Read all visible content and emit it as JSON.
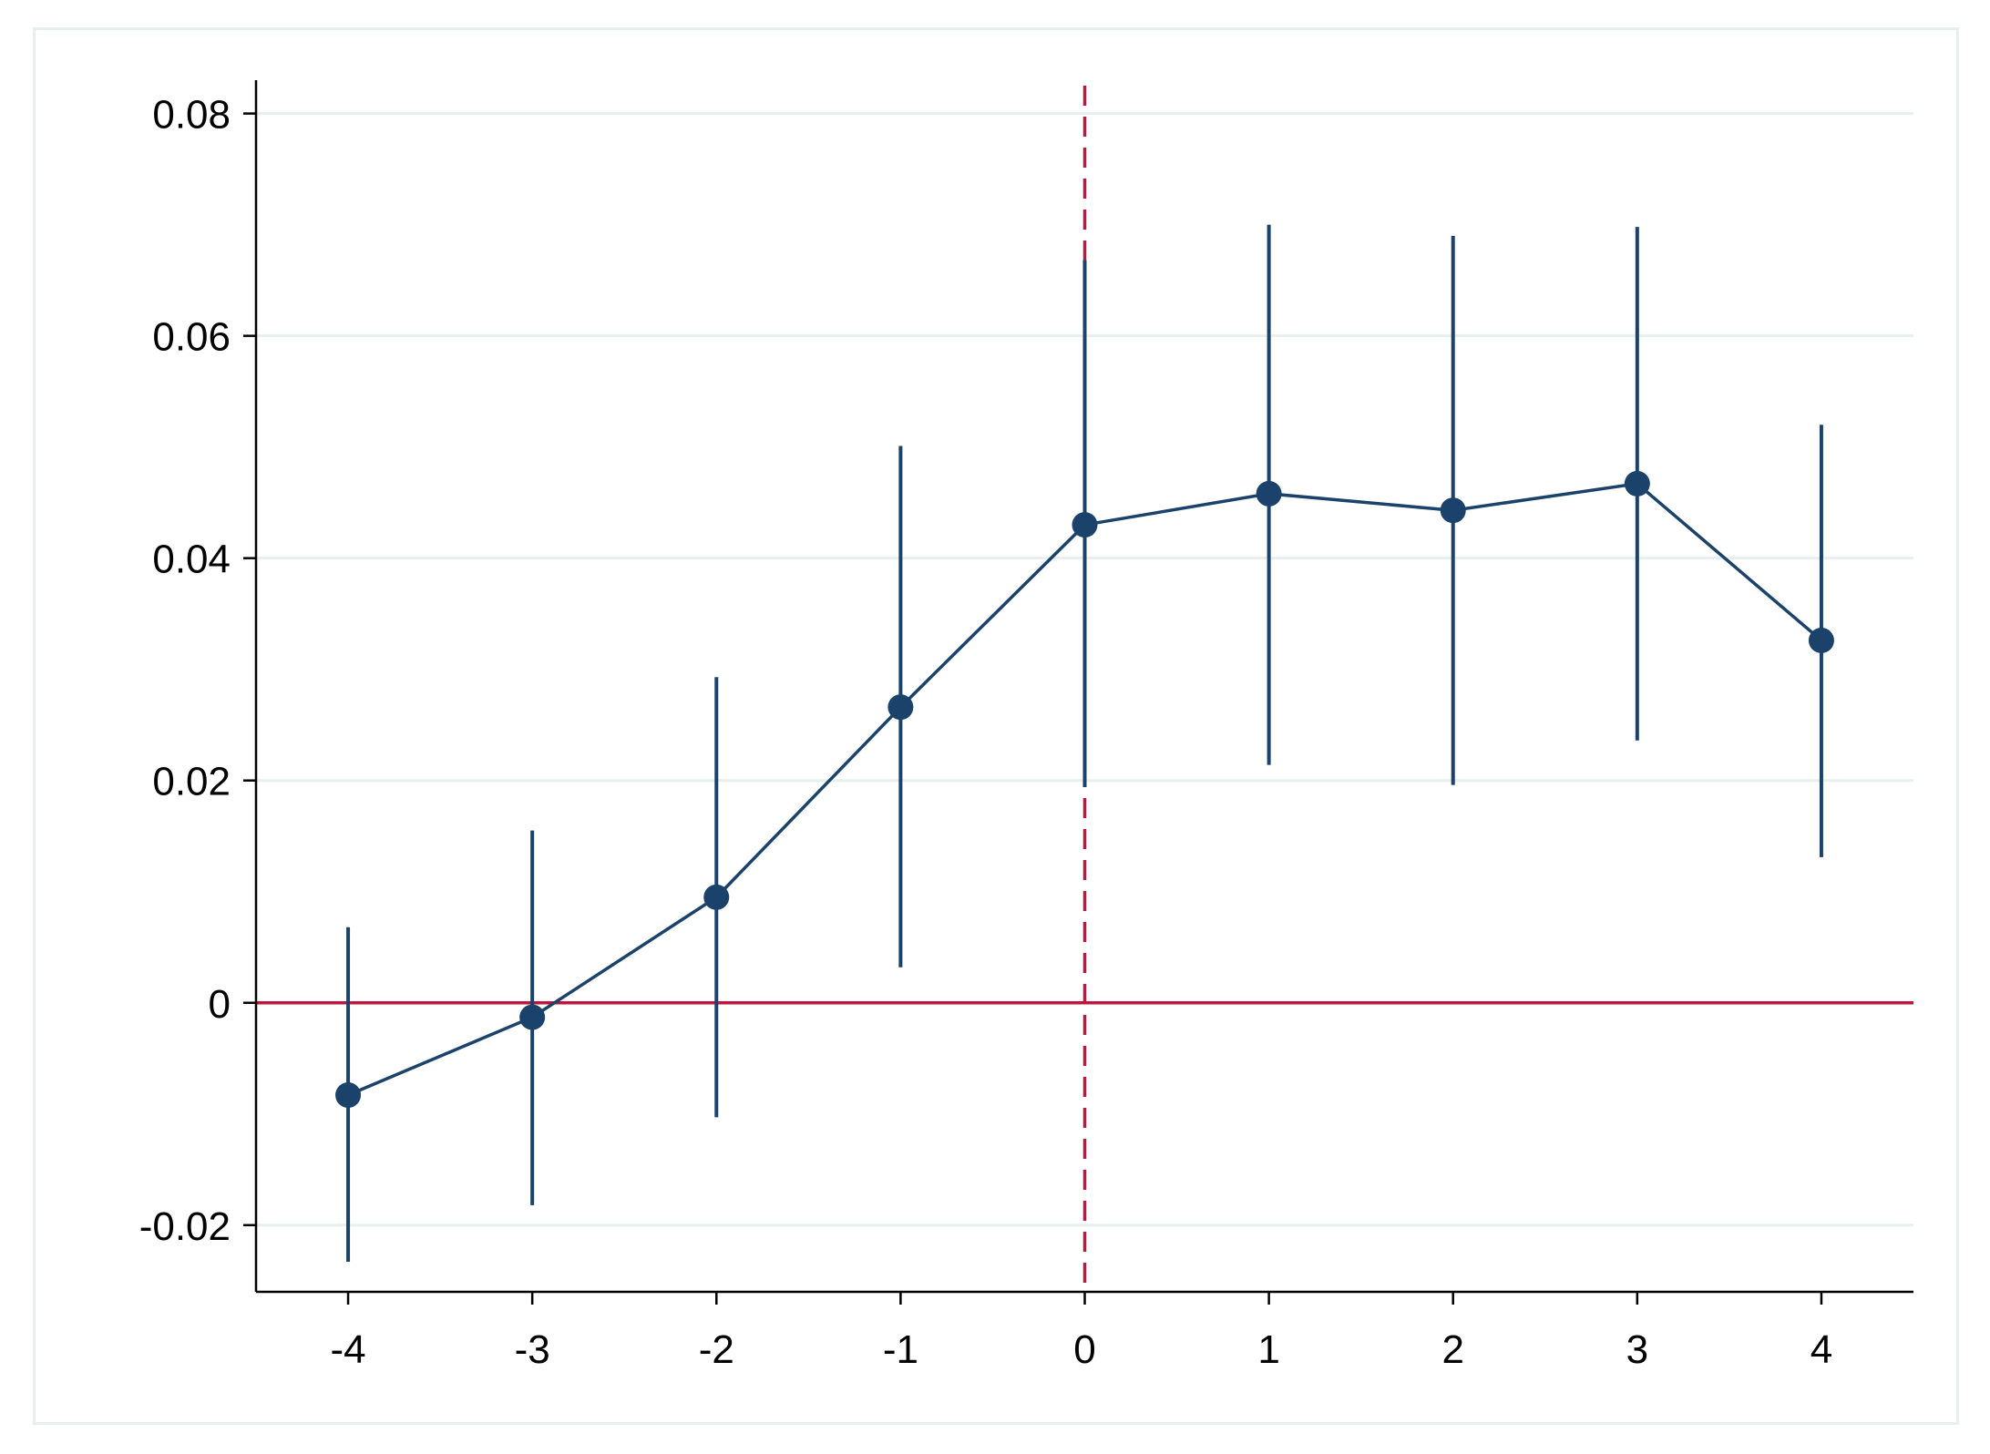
{
  "chart_data": {
    "type": "scatter",
    "title": "",
    "xlabel": "",
    "ylabel": "",
    "x": [
      -4,
      -3,
      -2,
      -1,
      0,
      1,
      2,
      3,
      4
    ],
    "xlim": [
      -4.5,
      4.5
    ],
    "ylim": [
      -0.026,
      0.083
    ],
    "grid": true,
    "legend": "none",
    "xticks": [
      -4,
      -3,
      -2,
      -1,
      0,
      1,
      2,
      3,
      4
    ],
    "xtick_labels": [
      "-4",
      "-3",
      "-2",
      "-1",
      "0",
      "1",
      "2",
      "3",
      "4"
    ],
    "yticks": [
      -0.02,
      0,
      0.02,
      0.04,
      0.06,
      0.08
    ],
    "ytick_labels": [
      "-0.02",
      "0",
      "0.02",
      "0.04",
      "0.06",
      "0.08"
    ],
    "series": [
      {
        "values": [
          -0.0083,
          -0.0013,
          0.0095,
          0.0266,
          0.043,
          0.0458,
          0.0443,
          0.0467,
          0.0326
        ],
        "ci_lower": [
          -0.0233,
          -0.0182,
          -0.0103,
          0.0032,
          0.0194,
          0.0214,
          0.0196,
          0.0236,
          0.0131
        ],
        "ci_upper": [
          0.0068,
          0.0155,
          0.0293,
          0.0501,
          0.0668,
          0.07,
          0.069,
          0.0698,
          0.052
        ],
        "style": "line with markers and vertical confidence-interval bars"
      }
    ],
    "reference_lines": [
      {
        "orientation": "horizontal",
        "value": 0,
        "style": "solid"
      },
      {
        "orientation": "vertical",
        "value": 0,
        "style": "dashed"
      }
    ],
    "colors": {
      "series": "#1b426a",
      "reference": "#c0153e",
      "grid": "#e7efef",
      "axis": "#000000"
    }
  }
}
